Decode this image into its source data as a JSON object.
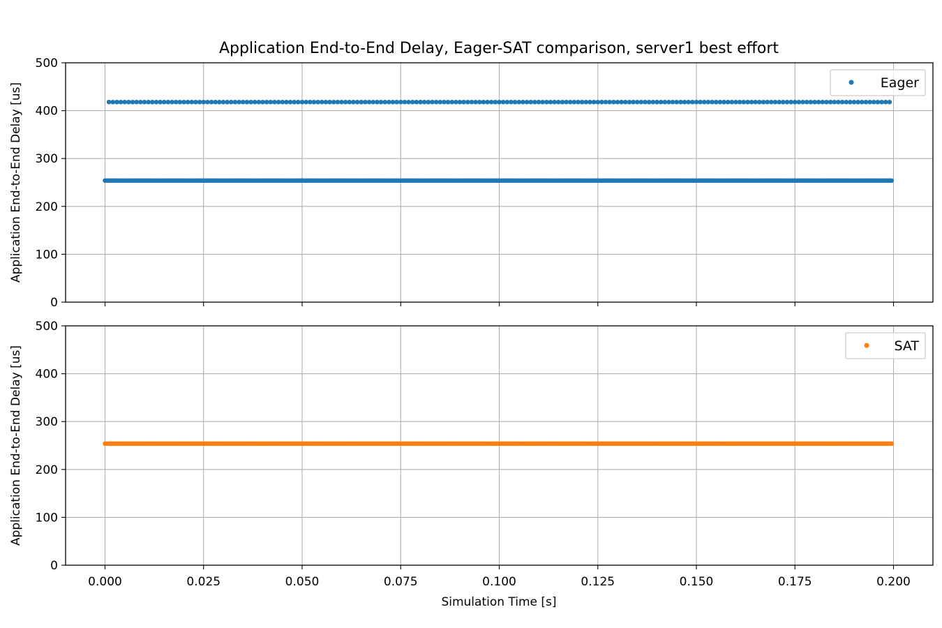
{
  "chart_data": {
    "title": "Application End-to-End Delay, Eager-SAT comparison, server1 best effort",
    "subplots": [
      {
        "type": "scatter",
        "series": [
          {
            "name": "Eager",
            "color": "#1f77b4",
            "groups": [
              {
                "x_start": 0.001,
                "x_end": 0.199,
                "x_step": 0.001,
                "y": 418
              },
              {
                "x_start": 0.0,
                "x_end": 0.1995,
                "x_step": 0.0005,
                "y": 254
              }
            ]
          }
        ],
        "ylabel": "Application End-to-End Delay [us]",
        "ylim": [
          0,
          500
        ],
        "xlim": [
          -0.01,
          0.21
        ],
        "yticks": [
          "0",
          "100",
          "200",
          "300",
          "400",
          "500"
        ],
        "grid": true,
        "legend_position": "top-right"
      },
      {
        "type": "scatter",
        "series": [
          {
            "name": "SAT",
            "color": "#ff7f0e",
            "groups": [
              {
                "x_start": 0.0,
                "x_end": 0.1995,
                "x_step": 0.0005,
                "y": 254
              }
            ]
          }
        ],
        "ylabel": "Application End-to-End Delay [us]",
        "ylim": [
          0,
          500
        ],
        "xlim": [
          -0.01,
          0.21
        ],
        "yticks": [
          "0",
          "100",
          "200",
          "300",
          "400",
          "500"
        ],
        "grid": true,
        "legend_position": "top-right"
      }
    ],
    "xlabel": "Simulation Time [s]",
    "xticks": [
      "0.000",
      "0.025",
      "0.050",
      "0.075",
      "0.100",
      "0.125",
      "0.150",
      "0.175",
      "0.200"
    ],
    "xtick_values": [
      0.0,
      0.025,
      0.05,
      0.075,
      0.1,
      0.125,
      0.15,
      0.175,
      0.2
    ]
  }
}
